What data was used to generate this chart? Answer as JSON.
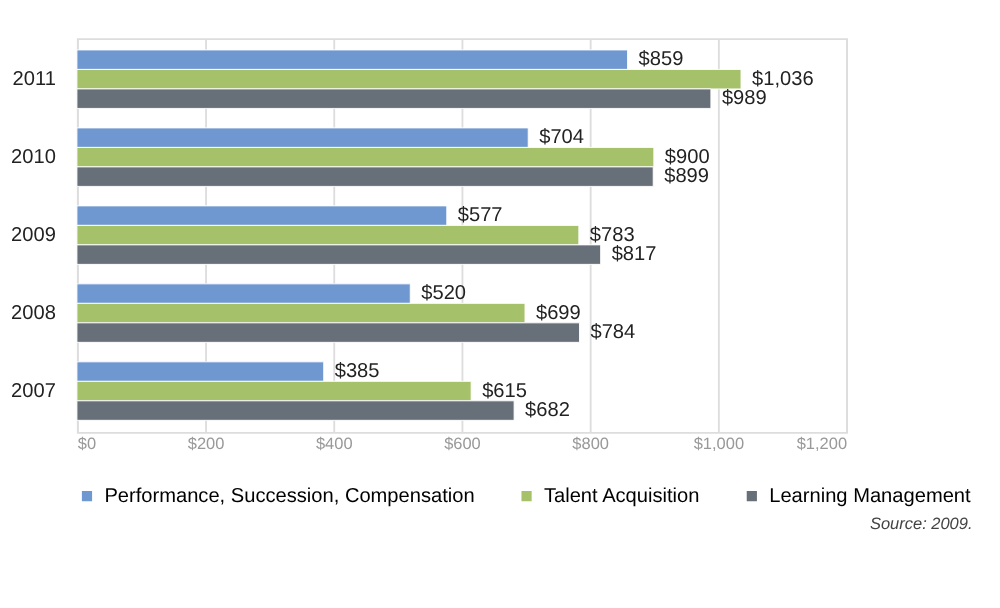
{
  "chart_data": {
    "type": "bar",
    "orientation": "horizontal",
    "categories": [
      "2011",
      "2010",
      "2009",
      "2008",
      "2007"
    ],
    "series": [
      {
        "name": "Performance, Succession, Compensation",
        "color": "#6f97d0",
        "values": [
          859,
          704,
          577,
          520,
          385
        ],
        "value_labels": [
          "$859",
          "$704",
          "$577",
          "$520",
          "$385"
        ]
      },
      {
        "name": "Talent Acquisition",
        "color": "#a5c26a",
        "values": [
          1036,
          900,
          783,
          699,
          615
        ],
        "value_labels": [
          "$1,036",
          "$900",
          "$783",
          "$699",
          "$615"
        ]
      },
      {
        "name": "Learning Management",
        "color": "#676f78",
        "values": [
          989,
          899,
          817,
          784,
          682
        ],
        "value_labels": [
          "$989",
          "$899",
          "$817",
          "$784",
          "$682"
        ]
      }
    ],
    "xlim": [
      0,
      1200
    ],
    "xticks": [
      {
        "value": 0,
        "label": "$0"
      },
      {
        "value": 200,
        "label": "$200"
      },
      {
        "value": 400,
        "label": "$400"
      },
      {
        "value": 600,
        "label": "$600"
      },
      {
        "value": 800,
        "label": "$800"
      },
      {
        "value": 1000,
        "label": "$1,000"
      },
      {
        "value": 1200,
        "label": "$1,200"
      }
    ],
    "grid": "x",
    "legend": "bottom",
    "annotations": [
      "Source: 2009."
    ]
  }
}
